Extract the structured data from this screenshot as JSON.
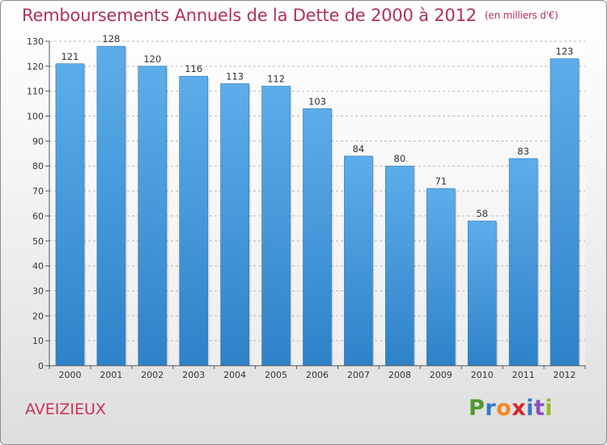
{
  "title": "Remboursements Annuels de la Dette de 2000 à 2012",
  "unit_note": "(en milliers d'€)",
  "commune": "AVEIZIEUX",
  "logo": {
    "letters": [
      "P",
      "r",
      "o",
      "x",
      "i",
      "t",
      "i"
    ],
    "colors": [
      "#4f9a2e",
      "#3478c8",
      "#f08a1c",
      "#d8262a",
      "#3478c8",
      "#8a4fbf",
      "#8fbf2a"
    ]
  },
  "colors": {
    "bar": "#2e82c8",
    "bar_light": "#5dadea",
    "title": "#b03060"
  },
  "chart_data": {
    "type": "bar",
    "title": "Remboursements Annuels de la Dette de 2000 à 2012",
    "categories": [
      "2000",
      "2001",
      "2002",
      "2003",
      "2004",
      "2005",
      "2006",
      "2007",
      "2008",
      "2009",
      "2010",
      "2011",
      "2012"
    ],
    "values": [
      121,
      128,
      120,
      116,
      113,
      112,
      103,
      84,
      80,
      71,
      58,
      83,
      123
    ],
    "ylim": [
      0,
      130
    ],
    "yticks": [
      0,
      10,
      20,
      30,
      40,
      50,
      60,
      70,
      80,
      90,
      100,
      110,
      120,
      130
    ],
    "grid": "horizontal dashed"
  }
}
